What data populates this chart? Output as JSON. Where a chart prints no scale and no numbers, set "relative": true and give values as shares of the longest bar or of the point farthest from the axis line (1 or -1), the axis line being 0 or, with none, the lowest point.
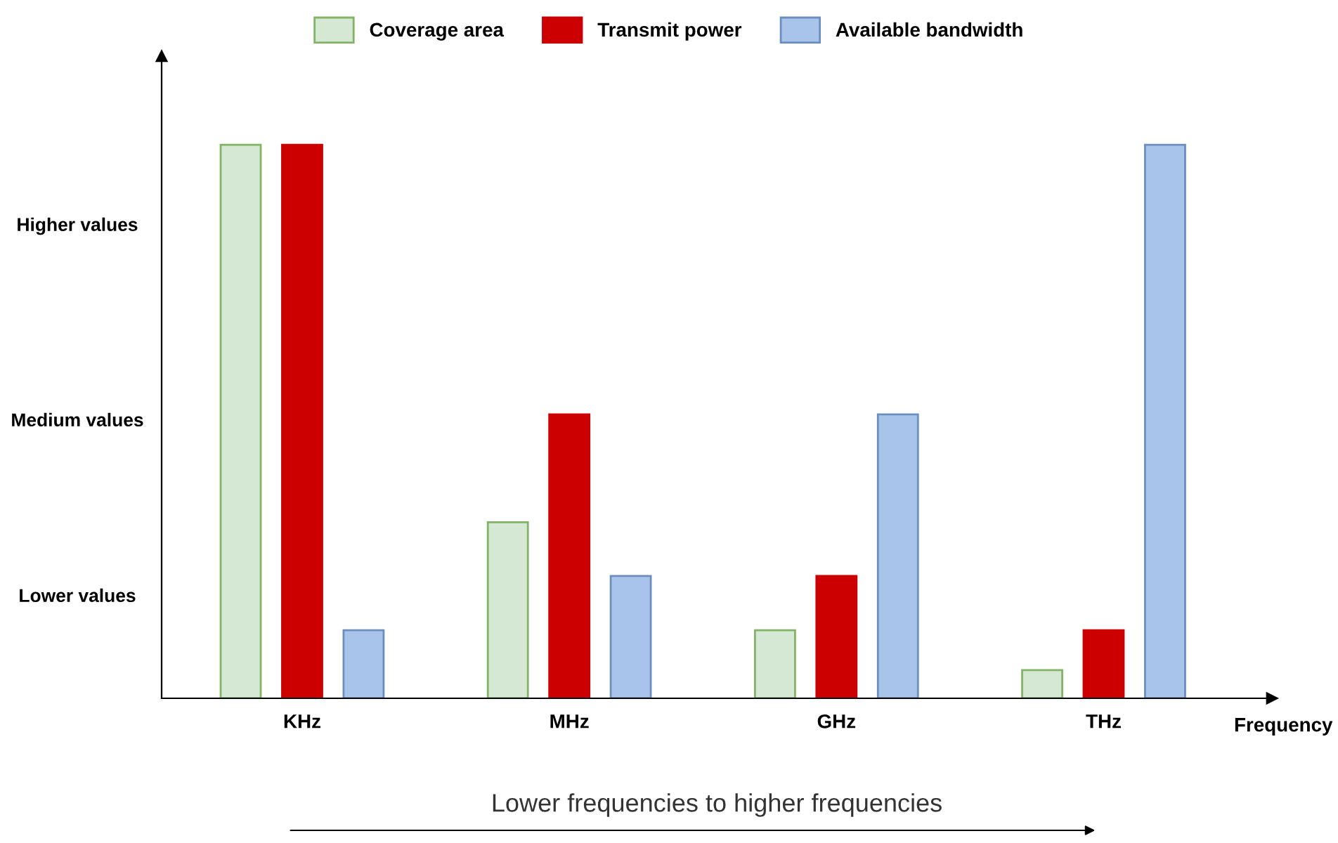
{
  "chart_data": {
    "type": "bar",
    "relative": true,
    "categories": [
      "KHz",
      "MHz",
      "GHz",
      "THz"
    ],
    "series": [
      {
        "name": "Coverage area",
        "color": "#d5e8d4",
        "values": [
          1,
          0.318,
          0.123,
          0.051
        ]
      },
      {
        "name": "Transmit power",
        "color": "#cc0000",
        "values": [
          1,
          0.513,
          0.221,
          0.123
        ]
      },
      {
        "name": "Available bandwidth",
        "color": "#a9c4eb",
        "values": [
          0.123,
          0.221,
          0.513,
          1
        ]
      }
    ],
    "xlabel": "Frequency",
    "annotations": [
      "Lower values",
      "Medium values",
      "Higher values",
      "Lower frequencies to higher frequencies"
    ],
    "legend": "top",
    "grid": false
  }
}
